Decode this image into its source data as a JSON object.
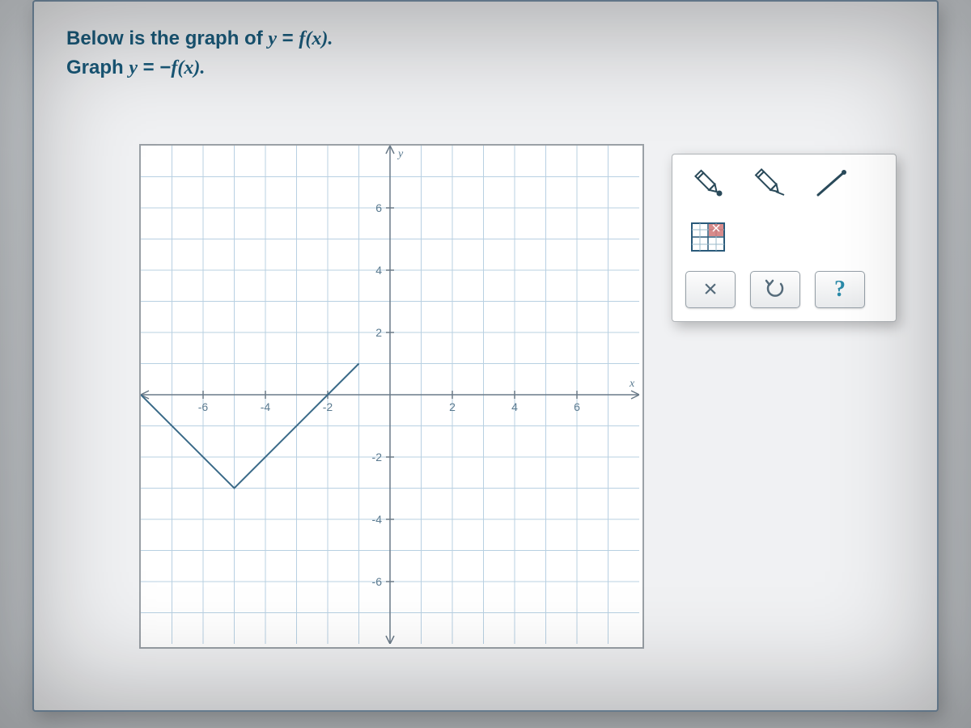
{
  "question": {
    "line1_pre": "Below is the graph of ",
    "line1_eq_y": "y",
    "line1_eq_eq": " = ",
    "line1_eq_f": "f",
    "line1_eq_x": "(x).",
    "line2_pre": "Graph ",
    "line2_eq_y": "y",
    "line2_eq_eq": " = −",
    "line2_eq_f": "f",
    "line2_eq_x": "(x)."
  },
  "chart": {
    "type": "line",
    "xmin": -8,
    "xmax": 8,
    "ymin": -8,
    "ymax": 8,
    "x_ticks": [
      -6,
      -4,
      -2,
      2,
      4,
      6
    ],
    "y_ticks": [
      -6,
      -4,
      -2,
      2,
      4,
      6
    ],
    "x_axis_label": "x",
    "y_axis_label": "y",
    "tick_fontsize": 14,
    "tick_color": "#5a7a90",
    "axis_color": "#6a7a88",
    "axis_width": 1.5,
    "grid_color": "#b8d0e2",
    "grid_width": 1,
    "background_color": "#ffffff",
    "function_color": "#3a6a88",
    "function_width": 2,
    "function_points": [
      [
        -8,
        0
      ],
      [
        -5,
        -3
      ],
      [
        -1,
        1
      ]
    ]
  },
  "toolbox": {
    "tools": [
      {
        "name": "pencil-dot-icon"
      },
      {
        "name": "pencil-icon"
      },
      {
        "name": "line-tool-icon"
      },
      {
        "name": "graph-region-icon"
      }
    ],
    "actions": [
      {
        "name": "clear-button",
        "glyph": "×",
        "color": "#546a7a",
        "size": 30
      },
      {
        "name": "undo-button",
        "glyph": "↺",
        "color": "#546a7a",
        "size": 26
      },
      {
        "name": "help-button",
        "glyph": "?",
        "color": "#2a8aa8",
        "size": 28
      }
    ]
  }
}
